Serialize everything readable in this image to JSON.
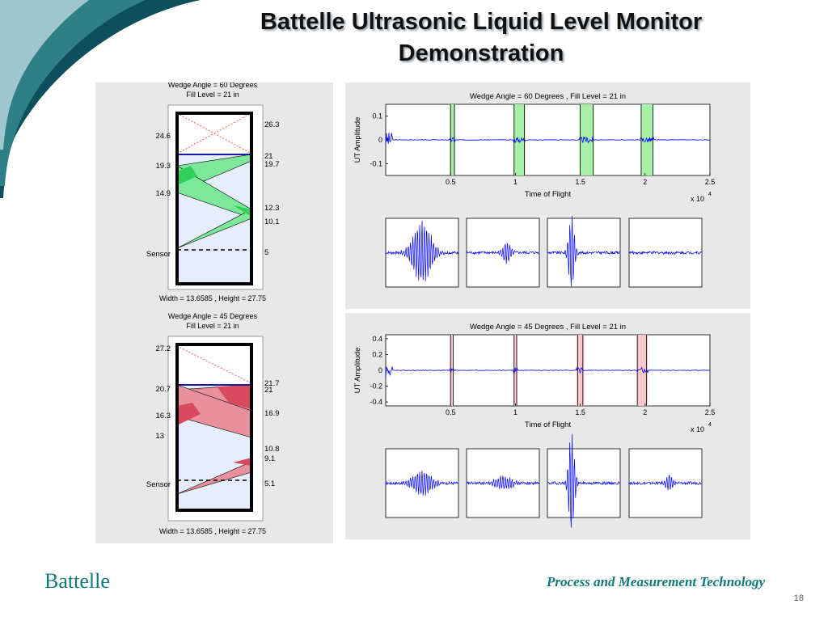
{
  "slide": {
    "title_line1": "Battelle Ultrasonic Liquid Level Monitor",
    "title_line2": "Demonstration",
    "brand": "Battelle",
    "tagline": "Process and Measurement Technology",
    "page_number": "18",
    "colors": {
      "brand": "#0f7a78",
      "swoosh_dark": "#0e4f5e",
      "swoosh_light": "#9fc6cc"
    }
  },
  "diagrams": [
    {
      "header1": "Wedge Angle = 60 Degrees",
      "header2": "Fill Level = 21 in",
      "footer": "Width = 13.6585 , Height = 27.75",
      "left_labels": [
        "24.6",
        "19.3",
        "14.9",
        "Sensor"
      ],
      "right_labels": [
        "26.3",
        "21",
        "19.7",
        "12.3",
        "10.1",
        "5"
      ],
      "fill_color": "#7de89a",
      "overlap_color": "#2fd05a"
    },
    {
      "header1": "Wedge Angle = 45 Degrees",
      "header2": "Fill Level = 21 in",
      "footer": "Width = 13.6585 , Height = 27.75",
      "left_labels": [
        "27.2",
        "20.7",
        "16.3",
        "13",
        "Sensor"
      ],
      "right_labels": [
        "21.7",
        "21",
        "16.9",
        "10.8",
        "9.1",
        "5.1"
      ],
      "fill_color": "#e8909c",
      "overlap_color": "#d94a5e"
    }
  ],
  "chart_data": [
    {
      "type": "line",
      "title": "Wedge Angle = 60 Degrees , Fill Level = 21 in",
      "xlabel": "Time of Flight",
      "ylabel": "UT Amplitude",
      "x_multiplier": "x 10",
      "x_exponent": "4",
      "xlim": [
        0,
        2.5
      ],
      "ylim": [
        -0.15,
        0.15
      ],
      "x_ticks": [
        "0.5",
        "1",
        "1.5",
        "2",
        "2.5"
      ],
      "y_ticks": [
        "0.1",
        "0",
        "-0.1"
      ],
      "y_tick_values": [
        0.1,
        0,
        -0.1
      ],
      "gates": [
        [
          0.495,
          0.535
        ],
        [
          0.985,
          1.075
        ],
        [
          1.495,
          1.605
        ],
        [
          1.965,
          2.065
        ]
      ],
      "gate_lines": [
        0.5,
        0.53,
        0.99,
        1.07,
        1.5,
        1.6,
        1.97,
        2.06
      ],
      "gate_color": "#a8f0a8",
      "line_color": "#0000ff"
    },
    {
      "type": "line",
      "title": "Wedge Angle = 45 Degrees , Fill Level = 21 in",
      "xlabel": "Time of Flight",
      "ylabel": "UT Amplitude",
      "x_multiplier": "x 10",
      "x_exponent": "4",
      "xlim": [
        0,
        2.5
      ],
      "ylim": [
        -0.45,
        0.45
      ],
      "x_ticks": [
        "0.5",
        "1",
        "1.5",
        "2",
        "2.5"
      ],
      "y_ticks": [
        "0.4",
        "0.2",
        "0",
        "-0.2",
        "-0.4"
      ],
      "y_tick_values": [
        0.4,
        0.2,
        0,
        -0.2,
        -0.4
      ],
      "gates": [
        [
          0.495,
          0.525
        ],
        [
          0.985,
          1.015
        ],
        [
          1.47,
          1.53
        ],
        [
          1.935,
          2.02
        ]
      ],
      "gate_lines": [
        0.5,
        0.52,
        0.99,
        1.01,
        1.48,
        1.52,
        1.94,
        2.01
      ],
      "gate_color": "#f8c8cc",
      "line_color": "#0000ff"
    }
  ],
  "waveforms": [
    {
      "amps": [
        0.45,
        0.15,
        0.55,
        0.0
      ],
      "shapes": [
        "wide",
        "narrow",
        "spike",
        "flat"
      ]
    },
    {
      "amps": [
        0.18,
        0.1,
        0.75,
        0.12
      ],
      "shapes": [
        "wide",
        "wide",
        "spike",
        "narrow"
      ]
    }
  ]
}
